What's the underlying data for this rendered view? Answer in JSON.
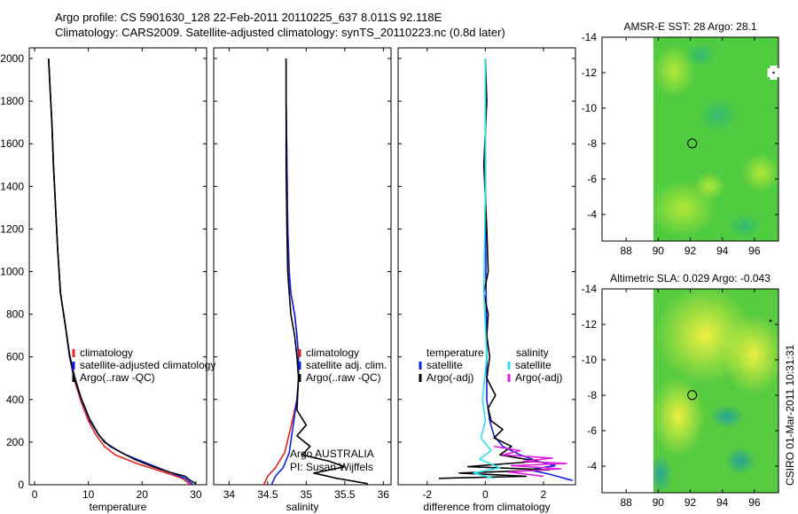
{
  "header": {
    "line1": "Argo profile: CS 5901630_128 22-Feb-2011 20110225_637 8.011S 92.118E",
    "line2": "Climatology: CARS2009. Satellite-adjusted climatology: synTS_20110223.nc (0.8d later)"
  },
  "credit": "CSIRO 01-Mar-2011 10:31:31",
  "colors": {
    "climatology": "#e8201e",
    "satellite": "#1020e0",
    "argo": "#000000",
    "salinity_satellite": "#30e0e8",
    "salinity_argo": "#e020e0"
  },
  "chart_data": [
    {
      "type": "line",
      "xlabel": "temperature",
      "ylabel": "",
      "xlim": [
        -1,
        32
      ],
      "ylim": [
        2050,
        0
      ],
      "xticks": [
        0,
        10,
        20,
        30
      ],
      "yticks": [
        0,
        200,
        400,
        600,
        800,
        1000,
        1200,
        1400,
        1600,
        1800,
        2000
      ],
      "legend_position": "bottom-right",
      "series": [
        {
          "name": "climatology",
          "color": "#e8201e",
          "x": [
            29,
            27.5,
            24,
            19,
            15,
            13,
            11.5,
            10,
            8.5,
            7.3,
            6.5,
            5.7,
            4.8,
            4.3,
            3.9,
            3.5,
            3.2,
            2.9,
            2.6
          ],
          "y": [
            0,
            30,
            60,
            100,
            140,
            180,
            230,
            300,
            400,
            500,
            600,
            750,
            900,
            1100,
            1300,
            1500,
            1700,
            1850,
            2000
          ]
        },
        {
          "name": "satellite-adjusted climatology",
          "color": "#1020e0",
          "x": [
            29.5,
            28,
            25,
            21,
            17,
            14,
            12,
            10.3,
            8.7,
            7.4,
            6.5,
            5.7,
            4.8,
            4.3,
            3.9,
            3.5,
            3.2,
            2.9,
            2.6
          ],
          "y": [
            0,
            30,
            60,
            100,
            140,
            180,
            230,
            300,
            400,
            500,
            600,
            750,
            900,
            1100,
            1300,
            1500,
            1700,
            1850,
            2000
          ]
        },
        {
          "name": "Argo(..raw -QC)",
          "color": "#000000",
          "x": [
            30,
            29,
            28,
            25,
            22,
            18.5,
            15.5,
            13,
            11.8,
            10.2,
            8.6,
            7.4,
            6.5,
            5.7,
            4.8,
            4.3,
            3.9,
            3.5,
            3.2,
            2.9,
            2.6
          ],
          "y": [
            5,
            20,
            40,
            60,
            85,
            120,
            160,
            200,
            240,
            310,
            410,
            510,
            610,
            750,
            900,
            1100,
            1300,
            1500,
            1700,
            1850,
            2000
          ]
        }
      ]
    },
    {
      "type": "line",
      "xlabel": "salinity",
      "ylabel": "",
      "xlim": [
        33.8,
        36.1
      ],
      "ylim": [
        2050,
        0
      ],
      "xticks": [
        34,
        34.5,
        35,
        35.5,
        36
      ],
      "yticks": [
        0,
        200,
        400,
        600,
        800,
        1000,
        1200,
        1400,
        1600,
        1800,
        2000
      ],
      "legend_position": "bottom-right",
      "annotations": [
        "Argo AUSTRALIA",
        "PI: Susan Wijffels"
      ],
      "series": [
        {
          "name": "climatology",
          "color": "#e8201e",
          "x": [
            34.45,
            34.5,
            34.6,
            34.72,
            34.82,
            34.88,
            34.9,
            34.9,
            34.88,
            34.85,
            34.8,
            34.78,
            34.76,
            34.75,
            34.74,
            34.74
          ],
          "y": [
            0,
            40,
            80,
            150,
            300,
            400,
            500,
            600,
            700,
            800,
            900,
            1000,
            1200,
            1500,
            1800,
            2000
          ]
        },
        {
          "name": "satellite adj. clim.",
          "color": "#1020e0",
          "x": [
            34.55,
            34.6,
            34.7,
            34.78,
            34.84,
            34.88,
            34.9,
            34.9,
            34.88,
            34.85,
            34.8,
            34.78,
            34.76,
            34.75,
            34.74,
            34.74
          ],
          "y": [
            0,
            40,
            80,
            150,
            300,
            400,
            500,
            600,
            700,
            800,
            900,
            1000,
            1200,
            1500,
            1800,
            2000
          ]
        },
        {
          "name": "Argo(..raw -QC)",
          "color": "#000000",
          "x": [
            35.8,
            35.4,
            35.1,
            35.5,
            35.3,
            34.95,
            35.05,
            34.88,
            35.0,
            34.88,
            34.9,
            34.88,
            34.85,
            34.8,
            34.78,
            34.76,
            34.75,
            34.74,
            34.74
          ],
          "y": [
            5,
            30,
            55,
            85,
            110,
            140,
            180,
            230,
            280,
            350,
            500,
            600,
            700,
            800,
            900,
            1000,
            1200,
            1500,
            2000
          ]
        }
      ]
    },
    {
      "type": "line",
      "xlabel": "difference from climatology",
      "ylabel": "",
      "xlim": [
        -3,
        3.1
      ],
      "ylim": [
        2050,
        0
      ],
      "xticks": [
        -2,
        0,
        2
      ],
      "yticks": [
        0,
        200,
        400,
        600,
        800,
        1000,
        1200,
        1400,
        1600,
        1800,
        2000
      ],
      "legend_position": "bottom",
      "legend_groups": [
        "temperature",
        "salinity"
      ],
      "series": [
        {
          "name": "satellite",
          "group": "temperature",
          "color": "#1020e0",
          "x": [
            3,
            2.2,
            1.5,
            2.4,
            1.8,
            1.2,
            0.6,
            0.3,
            0.15,
            0.05,
            0.05,
            0.02,
            0,
            0
          ],
          "y": [
            20,
            50,
            70,
            90,
            110,
            140,
            180,
            230,
            300,
            400,
            600,
            1000,
            1500,
            2000
          ]
        },
        {
          "name": "Argo(-adj)",
          "group": "temperature",
          "color": "#000000",
          "x": [
            -1.6,
            1.4,
            -0.9,
            2.2,
            -0.6,
            1.8,
            0.5,
            0.9,
            0.3,
            0.6,
            0.2,
            0.1,
            0.35,
            0.05,
            0.15,
            0.05,
            0.1,
            -0.05,
            0.1,
            0.05,
            -0.05,
            0.05,
            0
          ],
          "y": [
            30,
            40,
            55,
            70,
            85,
            110,
            140,
            180,
            220,
            260,
            300,
            360,
            420,
            500,
            600,
            700,
            800,
            900,
            1000,
            1200,
            1500,
            1800,
            2000
          ]
        },
        {
          "name": "satellite",
          "group": "salinity",
          "color": "#30e0e8",
          "x": [
            0.3,
            -0.4,
            0.5,
            -0.2,
            0.2,
            -0.15,
            0,
            -0.1,
            0.05,
            -0.05,
            0,
            0
          ],
          "y": [
            30,
            55,
            80,
            120,
            160,
            220,
            300,
            400,
            600,
            900,
            1400,
            2000
          ]
        },
        {
          "name": "Argo(-adj)",
          "group": "salinity",
          "color": "#e020e0",
          "x": [
            2.0,
            0.8,
            2.6,
            0.9,
            2.8,
            1.3,
            2.3,
            0.6,
            1.2,
            0.3
          ],
          "y": [
            40,
            60,
            75,
            90,
            100,
            110,
            125,
            140,
            160,
            180
          ]
        }
      ]
    },
    {
      "type": "heatmap",
      "title": "AMSR-E SST: 28 Argo: 28.1",
      "xlim": [
        86.5,
        97.5
      ],
      "ylim": [
        -14,
        -2.5
      ],
      "xticks": [
        88,
        90,
        92,
        94,
        96
      ],
      "yticks": [
        -4,
        -6,
        -8,
        -10,
        -12,
        -14
      ],
      "data_extent_x": [
        90,
        97.5
      ],
      "marker": {
        "x": 92.12,
        "y": -8.01
      },
      "missing_points": [
        {
          "x": 97.2,
          "y": -12.0
        }
      ]
    },
    {
      "type": "heatmap",
      "title": "Altimetric SLA: 0.029 Argo: -0.043",
      "xlim": [
        86.5,
        97.5
      ],
      "ylim": [
        -14,
        -2.5
      ],
      "xticks": [
        88,
        90,
        92,
        94,
        96
      ],
      "yticks": [
        -4,
        -6,
        -8,
        -10,
        -12,
        -14
      ],
      "data_extent_x": [
        90,
        97.5
      ],
      "marker": {
        "x": 92.12,
        "y": -8.01
      }
    }
  ]
}
